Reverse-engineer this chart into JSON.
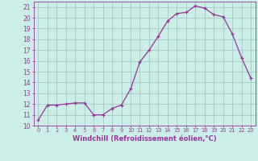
{
  "x": [
    0,
    1,
    2,
    3,
    4,
    5,
    6,
    7,
    8,
    9,
    10,
    11,
    12,
    13,
    14,
    15,
    16,
    17,
    18,
    19,
    20,
    21,
    22,
    23
  ],
  "y": [
    10.5,
    11.9,
    11.9,
    12.0,
    12.1,
    12.1,
    11.0,
    11.0,
    11.6,
    11.9,
    13.4,
    15.9,
    17.0,
    18.3,
    19.7,
    20.4,
    20.5,
    21.1,
    20.9,
    20.3,
    20.1,
    18.5,
    16.3,
    14.4
  ],
  "line_color": "#993399",
  "marker": "+",
  "bg_color": "#cceee8",
  "grid_color": "#aacccc",
  "xlabel": "Windchill (Refroidissement éolien,°C)",
  "ylabel_ticks": [
    10,
    11,
    12,
    13,
    14,
    15,
    16,
    17,
    18,
    19,
    20,
    21
  ],
  "xlim": [
    -0.5,
    23.5
  ],
  "ylim": [
    10,
    21.5
  ],
  "tick_color": "#993399",
  "label_color": "#993399"
}
